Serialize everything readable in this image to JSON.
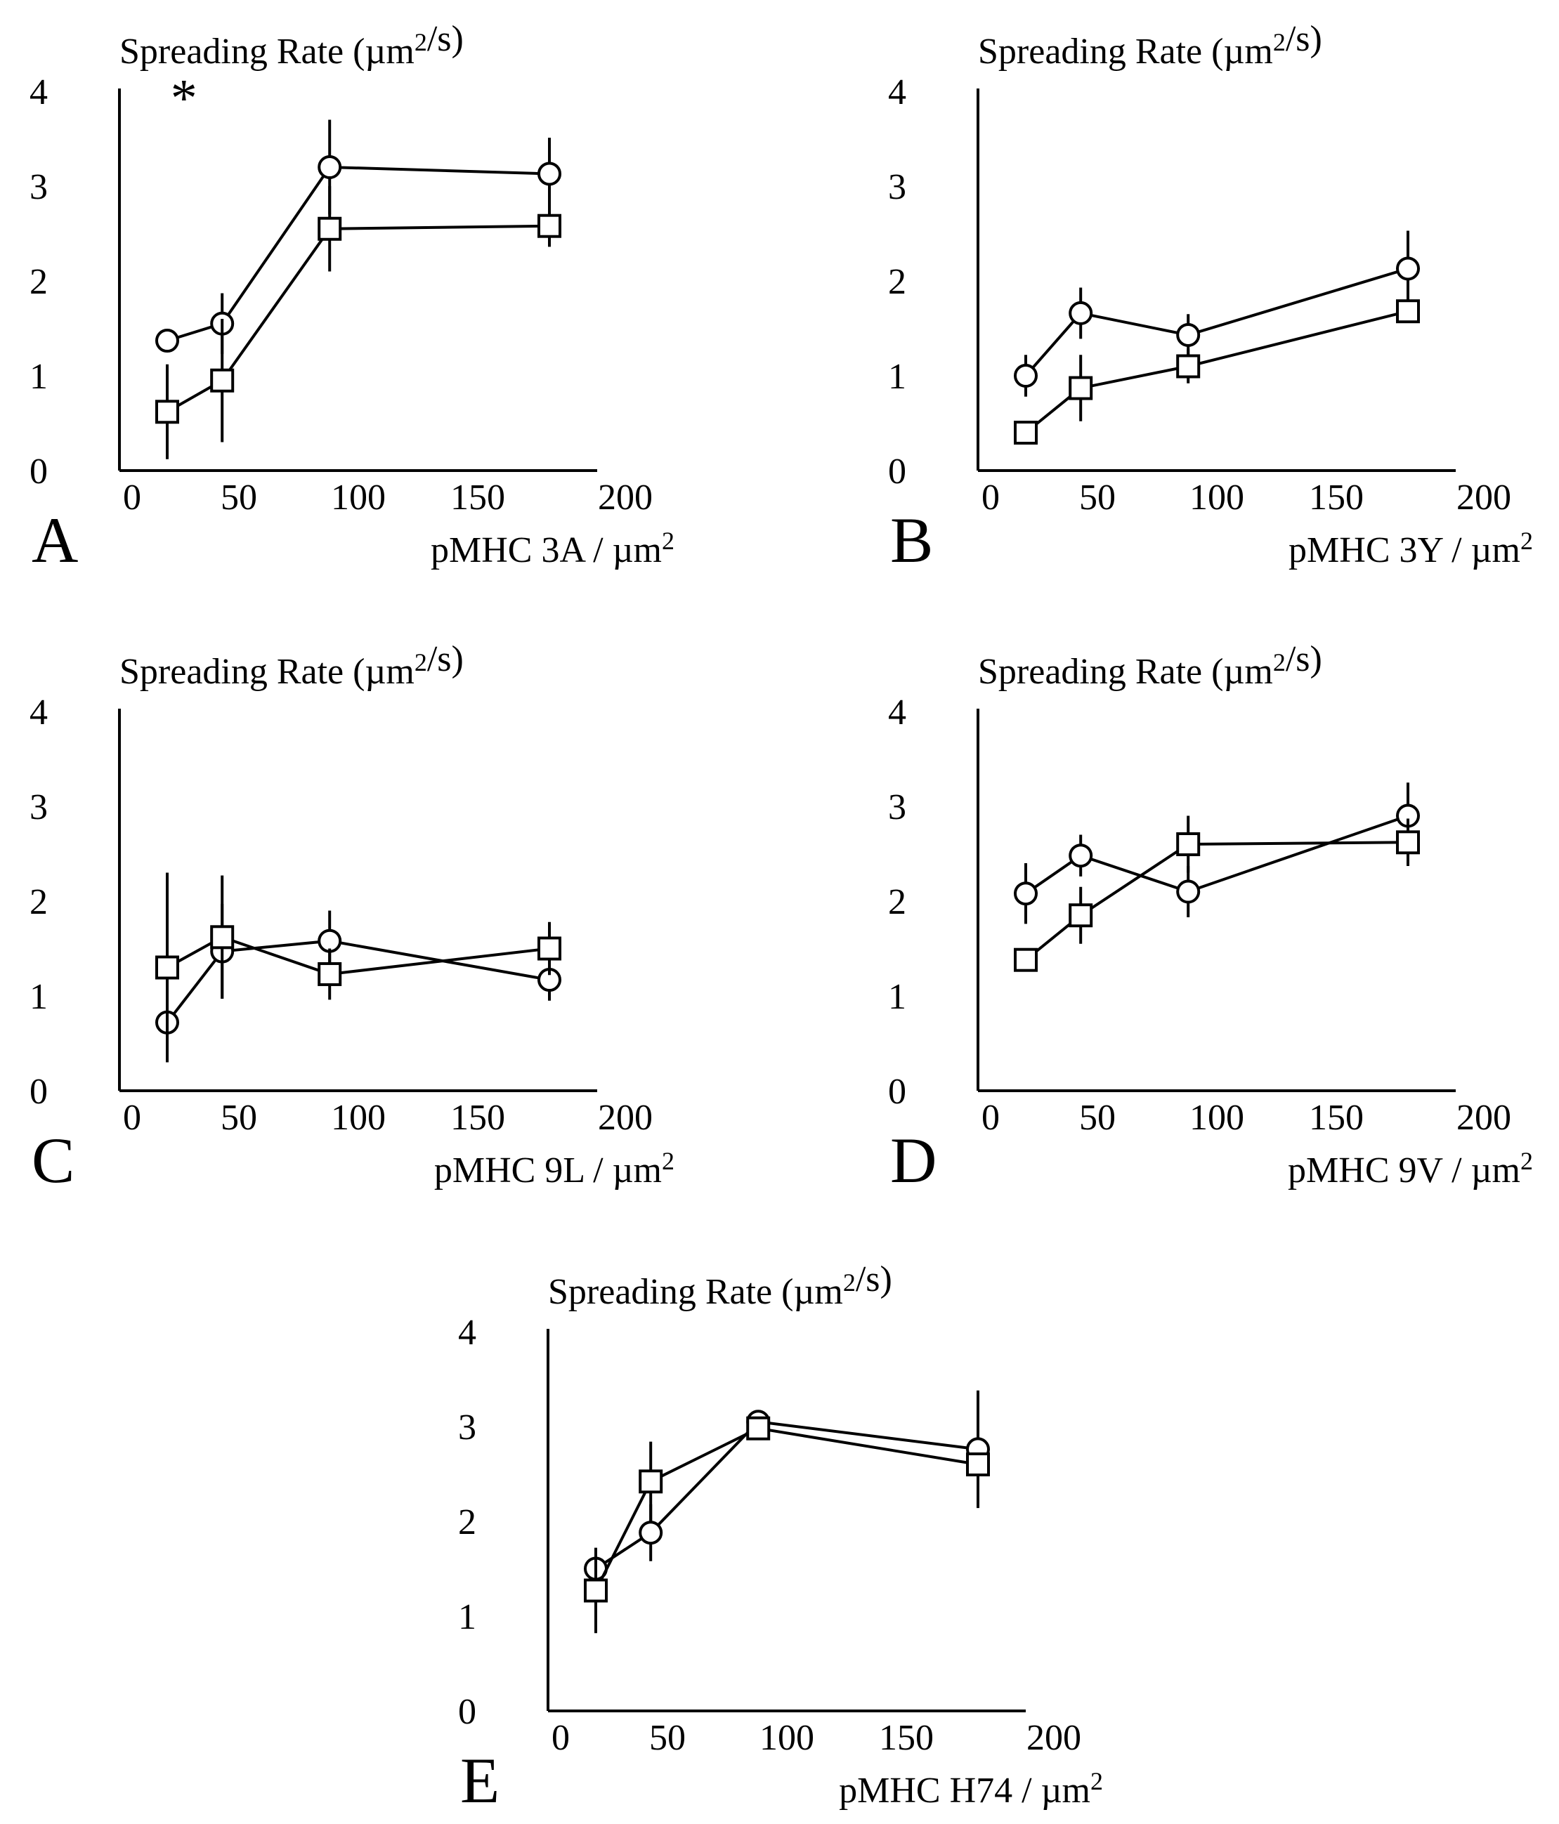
{
  "chart_data": [
    {
      "type": "line",
      "panel": "A",
      "title": "",
      "ylabel": "Spreading Rate (µm²/s)",
      "xlabel": "pMHC 3A / µm²",
      "xlim": [
        0,
        200
      ],
      "ylim": [
        0,
        4
      ],
      "xticks": [
        0,
        50,
        100,
        150,
        200
      ],
      "yticks": [
        0,
        1,
        2,
        3,
        4
      ],
      "x": [
        20,
        43,
        88,
        180
      ],
      "annotation": "*",
      "series": [
        {
          "name": "circle",
          "marker": "circle",
          "values": [
            1.37,
            1.55,
            3.2,
            3.13
          ],
          "errors": [
            0.05,
            0.32,
            0.5,
            0.38
          ]
        },
        {
          "name": "square",
          "marker": "square",
          "values": [
            0.62,
            0.95,
            2.55,
            2.58
          ],
          "errors": [
            0.5,
            0.65,
            0.45,
            0.22
          ]
        }
      ]
    },
    {
      "type": "line",
      "panel": "B",
      "title": "",
      "ylabel": "Spreading Rate (µm²/s)",
      "xlabel": "pMHC 3Y / µm²",
      "xlim": [
        0,
        200
      ],
      "ylim": [
        0,
        4
      ],
      "xticks": [
        0,
        50,
        100,
        150,
        200
      ],
      "yticks": [
        0,
        1,
        2,
        3,
        4
      ],
      "x": [
        20,
        43,
        88,
        180
      ],
      "series": [
        {
          "name": "circle",
          "marker": "circle",
          "values": [
            1.0,
            1.66,
            1.43,
            2.13
          ],
          "errors": [
            0.22,
            0.27,
            0.22,
            0.4
          ]
        },
        {
          "name": "square",
          "marker": "square",
          "values": [
            0.4,
            0.87,
            1.1,
            1.68
          ],
          "errors": [
            0.08,
            0.35,
            0.18,
            0.1
          ]
        }
      ]
    },
    {
      "type": "line",
      "panel": "C",
      "title": "",
      "ylabel": "Spreading Rate (µm²/s)",
      "xlabel": "pMHC 9L / µm²",
      "xlim": [
        0,
        200
      ],
      "ylim": [
        0,
        4
      ],
      "xticks": [
        0,
        50,
        100,
        150,
        200
      ],
      "yticks": [
        0,
        1,
        2,
        3,
        4
      ],
      "x": [
        20,
        43,
        88,
        180
      ],
      "series": [
        {
          "name": "circle",
          "marker": "circle",
          "values": [
            0.72,
            1.47,
            1.58,
            1.17
          ],
          "errors": [
            0.4,
            0.5,
            0.32,
            0.22
          ]
        },
        {
          "name": "square",
          "marker": "square",
          "values": [
            1.3,
            1.62,
            1.23,
            1.5
          ],
          "errors": [
            1.0,
            0.65,
            0.27,
            0.28
          ]
        }
      ]
    },
    {
      "type": "line",
      "panel": "D",
      "title": "",
      "ylabel": "Spreading Rate (µm²/s)",
      "xlabel": "pMHC 9V / µm²",
      "xlim": [
        0,
        200
      ],
      "ylim": [
        0,
        4
      ],
      "xticks": [
        0,
        50,
        100,
        150,
        200
      ],
      "yticks": [
        0,
        1,
        2,
        3,
        4
      ],
      "x": [
        20,
        43,
        88,
        180
      ],
      "series": [
        {
          "name": "circle",
          "marker": "circle",
          "values": [
            2.08,
            2.48,
            2.1,
            2.9
          ],
          "errors": [
            0.32,
            0.22,
            0.27,
            0.35
          ]
        },
        {
          "name": "square",
          "marker": "square",
          "values": [
            1.38,
            1.85,
            2.6,
            2.62
          ],
          "errors": [
            0.08,
            0.3,
            0.3,
            0.25
          ]
        }
      ]
    },
    {
      "type": "line",
      "panel": "E",
      "title": "",
      "ylabel": "Spreading Rate (µm²/s)",
      "xlabel": "pMHC H74 / µm²",
      "xlim": [
        0,
        200
      ],
      "ylim": [
        0,
        4
      ],
      "xticks": [
        0,
        50,
        100,
        150,
        200
      ],
      "yticks": [
        0,
        1,
        2,
        3,
        4
      ],
      "x": [
        20,
        43,
        88,
        180
      ],
      "series": [
        {
          "name": "circle",
          "marker": "circle",
          "values": [
            1.5,
            1.88,
            3.05,
            2.76
          ],
          "errors": [
            0.22,
            0.3,
            0.12,
            0.62
          ]
        },
        {
          "name": "square",
          "marker": "square",
          "values": [
            1.27,
            2.42,
            2.98,
            2.6
          ],
          "errors": [
            0.45,
            0.42,
            0.1,
            0.1
          ]
        }
      ]
    }
  ]
}
